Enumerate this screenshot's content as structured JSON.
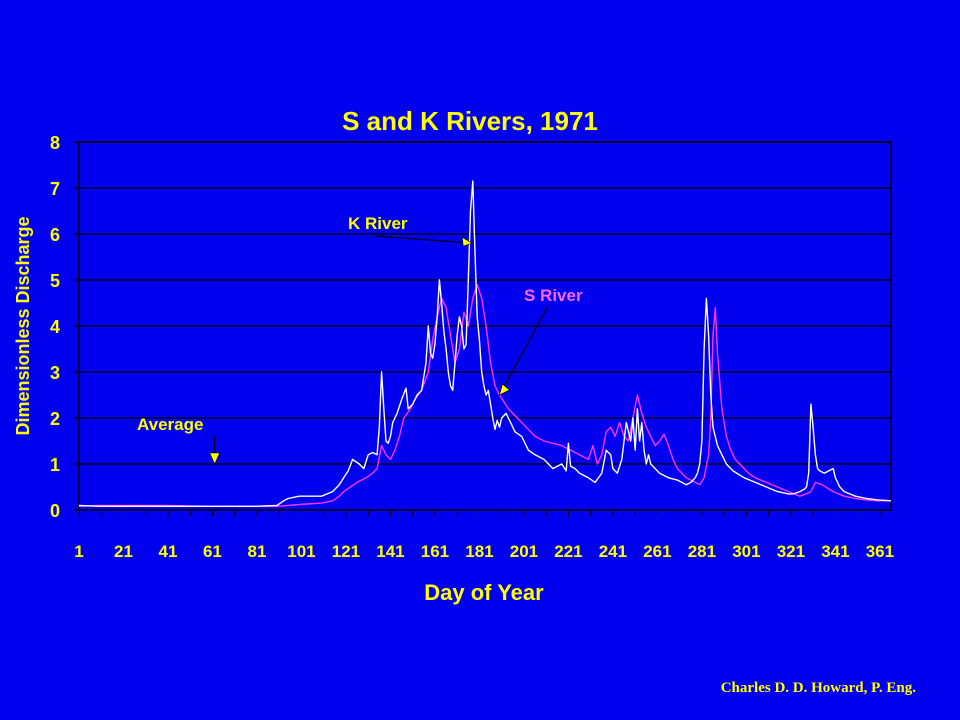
{
  "chart_data": {
    "type": "line",
    "title": "S and K Rivers, 1971",
    "xlabel": "Day of Year",
    "ylabel": "Dimensionless Discharge",
    "xlim": [
      1,
      366
    ],
    "ylim": [
      0,
      8
    ],
    "x_ticks": [
      1,
      21,
      41,
      61,
      81,
      101,
      121,
      141,
      161,
      181,
      201,
      221,
      241,
      261,
      281,
      301,
      321,
      341,
      361
    ],
    "y_ticks": [
      0,
      1,
      2,
      3,
      4,
      5,
      6,
      7,
      8
    ],
    "grid": "horizontal",
    "legend": "none",
    "colors": {
      "background": "#0000ee",
      "plot_area": "#0000ee",
      "text": "#ffff00",
      "axis": "#000000"
    },
    "series": [
      {
        "name": "K River",
        "color": "#ffffff",
        "x": [
          1,
          10,
          20,
          40,
          60,
          80,
          90,
          93,
          95,
          100,
          110,
          115,
          118,
          120,
          122,
          124,
          127,
          129,
          131,
          133,
          135,
          136,
          137,
          138,
          139,
          140,
          141,
          142,
          144,
          146,
          148,
          149,
          151,
          153,
          155,
          157,
          158,
          159,
          160,
          161,
          162,
          163,
          164,
          165,
          166,
          167,
          168,
          169,
          170,
          171,
          172,
          173,
          174,
          175,
          176,
          177,
          178,
          179,
          180,
          181,
          182,
          183,
          184,
          185,
          186,
          187,
          188,
          189,
          190,
          191,
          193,
          195,
          197,
          200,
          203,
          206,
          210,
          214,
          216,
          218,
          220,
          221,
          222,
          224,
          226,
          230,
          233,
          236,
          238,
          240,
          241,
          243,
          245,
          247,
          249,
          250,
          251,
          252,
          253,
          254,
          255,
          256,
          257,
          258,
          260,
          262,
          264,
          266,
          270,
          272,
          274,
          276,
          278,
          279,
          280,
          281,
          282,
          283,
          284,
          285,
          286,
          287,
          288,
          290,
          292,
          295,
          300,
          305,
          310,
          315,
          320,
          322,
          325,
          327,
          328,
          329,
          330,
          331,
          332,
          333,
          334,
          336,
          338,
          340,
          341,
          343,
          345,
          350,
          355,
          360,
          366
        ],
        "y": [
          0.1,
          0.08,
          0.08,
          0.08,
          0.08,
          0.08,
          0.1,
          0.2,
          0.25,
          0.3,
          0.3,
          0.4,
          0.55,
          0.7,
          0.85,
          1.1,
          1.0,
          0.9,
          1.2,
          1.25,
          1.2,
          1.8,
          3.0,
          2.2,
          1.5,
          1.45,
          1.6,
          1.9,
          2.1,
          2.4,
          2.65,
          2.2,
          2.3,
          2.5,
          2.6,
          3.2,
          4.0,
          3.4,
          3.3,
          3.6,
          4.2,
          5.0,
          4.5,
          3.9,
          3.5,
          3.0,
          2.7,
          2.6,
          3.2,
          3.8,
          4.2,
          4.0,
          3.5,
          3.6,
          5.0,
          6.5,
          7.15,
          5.6,
          4.2,
          3.7,
          3.0,
          2.7,
          2.5,
          2.6,
          2.3,
          2.0,
          1.75,
          1.95,
          1.8,
          2.0,
          2.1,
          1.9,
          1.7,
          1.6,
          1.3,
          1.2,
          1.1,
          0.9,
          0.95,
          1.0,
          0.85,
          1.45,
          0.95,
          0.9,
          0.8,
          0.7,
          0.6,
          0.8,
          1.3,
          1.2,
          0.9,
          0.8,
          1.1,
          1.9,
          1.5,
          2.0,
          1.3,
          2.2,
          1.5,
          1.9,
          1.3,
          1.0,
          1.2,
          1.0,
          0.9,
          0.8,
          0.75,
          0.7,
          0.65,
          0.6,
          0.55,
          0.6,
          0.7,
          0.8,
          1.0,
          1.5,
          3.5,
          4.6,
          3.8,
          2.5,
          1.8,
          1.6,
          1.4,
          1.2,
          1.0,
          0.85,
          0.7,
          0.6,
          0.5,
          0.4,
          0.35,
          0.35,
          0.4,
          0.45,
          0.5,
          0.8,
          2.3,
          1.8,
          1.2,
          0.9,
          0.85,
          0.8,
          0.85,
          0.9,
          0.7,
          0.5,
          0.4,
          0.3,
          0.25,
          0.22,
          0.2
        ],
        "label": "K River"
      },
      {
        "name": "S River",
        "color": "#ff33ff",
        "x": [
          1,
          10,
          20,
          40,
          60,
          80,
          90,
          95,
          100,
          110,
          115,
          118,
          120,
          123,
          126,
          130,
          133,
          135,
          137,
          139,
          141,
          143,
          145,
          147,
          150,
          152,
          155,
          158,
          160,
          162,
          164,
          166,
          168,
          170,
          172,
          174,
          176,
          178,
          180,
          182,
          184,
          186,
          188,
          190,
          194,
          198,
          202,
          206,
          210,
          214,
          218,
          222,
          226,
          230,
          232,
          234,
          236,
          238,
          240,
          242,
          244,
          246,
          248,
          250,
          252,
          254,
          256,
          258,
          260,
          262,
          264,
          266,
          268,
          270,
          272,
          274,
          276,
          278,
          280,
          282,
          284,
          285,
          286,
          287,
          288,
          290,
          292,
          294,
          296,
          298,
          300,
          302,
          305,
          310,
          315,
          320,
          325,
          328,
          330,
          332,
          335,
          340,
          345,
          350,
          355,
          360,
          366
        ],
        "y": [
          0.08,
          0.1,
          0.1,
          0.1,
          0.08,
          0.08,
          0.08,
          0.1,
          0.12,
          0.15,
          0.2,
          0.3,
          0.4,
          0.5,
          0.6,
          0.7,
          0.8,
          0.9,
          1.4,
          1.2,
          1.1,
          1.3,
          1.6,
          2.0,
          2.2,
          2.4,
          2.6,
          3.0,
          3.7,
          4.2,
          4.6,
          4.4,
          3.8,
          3.2,
          3.5,
          4.3,
          4.0,
          4.6,
          4.9,
          4.6,
          4.0,
          3.2,
          2.7,
          2.5,
          2.2,
          2.0,
          1.8,
          1.6,
          1.5,
          1.45,
          1.4,
          1.3,
          1.2,
          1.1,
          1.4,
          1.0,
          1.2,
          1.7,
          1.8,
          1.6,
          1.9,
          1.6,
          1.5,
          2.0,
          2.5,
          2.1,
          1.8,
          1.6,
          1.4,
          1.5,
          1.65,
          1.4,
          1.1,
          0.9,
          0.8,
          0.7,
          0.65,
          0.6,
          0.55,
          0.7,
          1.2,
          2.0,
          3.8,
          4.4,
          3.4,
          2.2,
          1.6,
          1.3,
          1.1,
          1.0,
          0.9,
          0.8,
          0.7,
          0.6,
          0.5,
          0.4,
          0.3,
          0.35,
          0.4,
          0.6,
          0.55,
          0.4,
          0.3,
          0.25,
          0.22,
          0.2,
          0.2
        ],
        "label": "S River"
      }
    ],
    "annotations": [
      {
        "text": "K River",
        "color": "#ffff00",
        "point": [
          180,
          5.8
        ]
      },
      {
        "text": "S River",
        "color": "#ff66ff",
        "point": [
          190,
          2.5
        ]
      },
      {
        "text": "Average",
        "color": "#ffff00",
        "point": [
          62,
          1.0
        ]
      }
    ]
  },
  "footer": {
    "credit": "Charles D. D. Howard, P. Eng."
  }
}
